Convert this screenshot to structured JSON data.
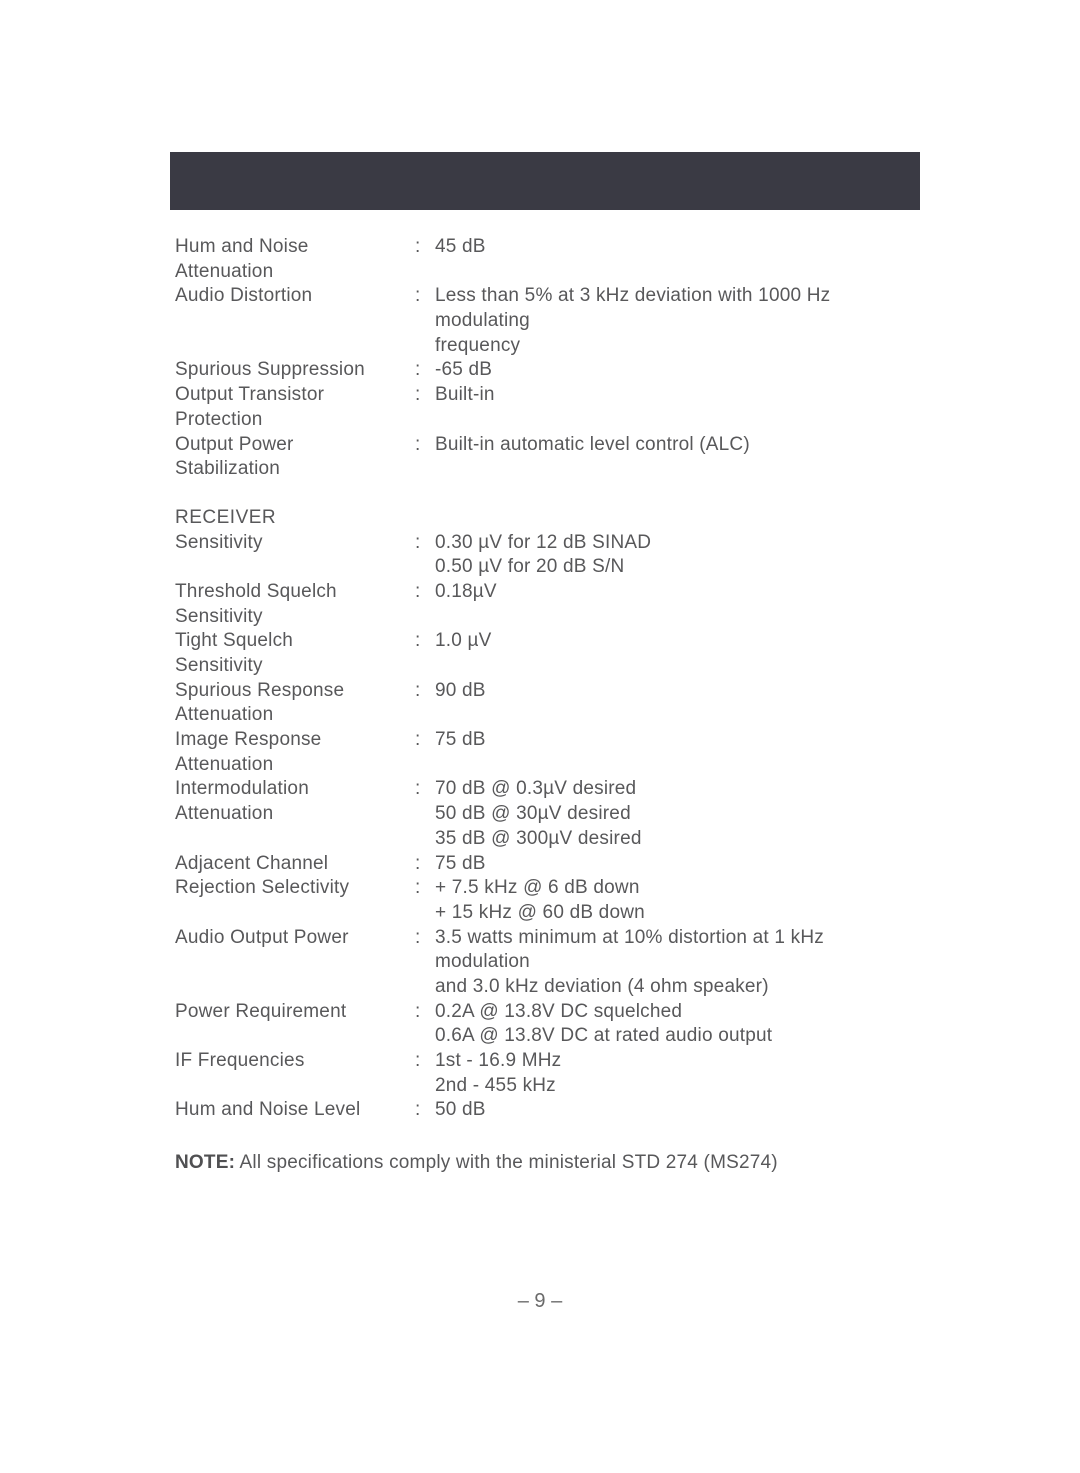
{
  "header_bar": {
    "color": "#3a3a44"
  },
  "specs": {
    "hum_noise_att": {
      "label": "Hum and Noise Attenuation",
      "value": "45 dB"
    },
    "audio_distortion": {
      "label": "Audio Distortion",
      "value": "Less than 5%  at  3 kHz deviation with 1000 Hz modulating",
      "value_cont": "frequency"
    },
    "spurious_supp": {
      "label": "Spurious Suppression",
      "value": "-65 dB"
    },
    "output_transistor": {
      "label": "Output Transistor Protection",
      "value": "Built-in"
    },
    "output_power_stab": {
      "label": "Output Power Stabilization",
      "value": "Built-in automatic level control (ALC)"
    },
    "receiver_head": "RECEIVER",
    "sensitivity": {
      "label": "Sensitivity",
      "value": "0.30 µV for 12 dB SINAD",
      "value2": "0.50 µV for 20 dB S/N"
    },
    "threshold_squelch": {
      "label": "Threshold Squelch Sensitivity",
      "value": "0.18µV"
    },
    "tight_squelch": {
      "label": "Tight Squelch Sensitivity",
      "value": "1.0 µV"
    },
    "spurious_resp": {
      "label": "Spurious Response Attenuation",
      "value": "90 dB"
    },
    "image_resp": {
      "label": "Image Response Attenuation",
      "value": "75 dB"
    },
    "intermod": {
      "label": "Intermodulation Attenuation",
      "value": "70 dB @ 0.3µV desired",
      "value2": "50 dB @ 30µV desired",
      "value3": "35 dB @ 300µV desired"
    },
    "adjacent": {
      "label": "Adjacent Channel",
      "value": "75 dB"
    },
    "rejection": {
      "label": "Rejection Selectivity",
      "value": "+ 7.5 kHz @ 6 dB down",
      "value2": "+ 15 kHz  @ 60 dB down"
    },
    "audio_output": {
      "label": "Audio Output Power",
      "value": "3.5 watts minimum at 10% distortion at 1 kHz modulation",
      "value2": "and 3.0 kHz deviation (4 ohm speaker)"
    },
    "power_req": {
      "label": "Power Requirement",
      "value": "0.2A @ 13.8V DC squelched",
      "value2": "0.6A @ 13.8V DC at rated audio output"
    },
    "if_freq": {
      "label": "IF Frequencies",
      "value": "1st - 16.9 MHz",
      "value2": "2nd - 455 kHz"
    },
    "hum_noise_level": {
      "label": "Hum and Noise Level",
      "value": "50 dB"
    }
  },
  "note_prefix": "NOTE:",
  "note_text": "All specifications comply with the ministerial STD 274 (MS274)",
  "page_number": "– 9 –"
}
